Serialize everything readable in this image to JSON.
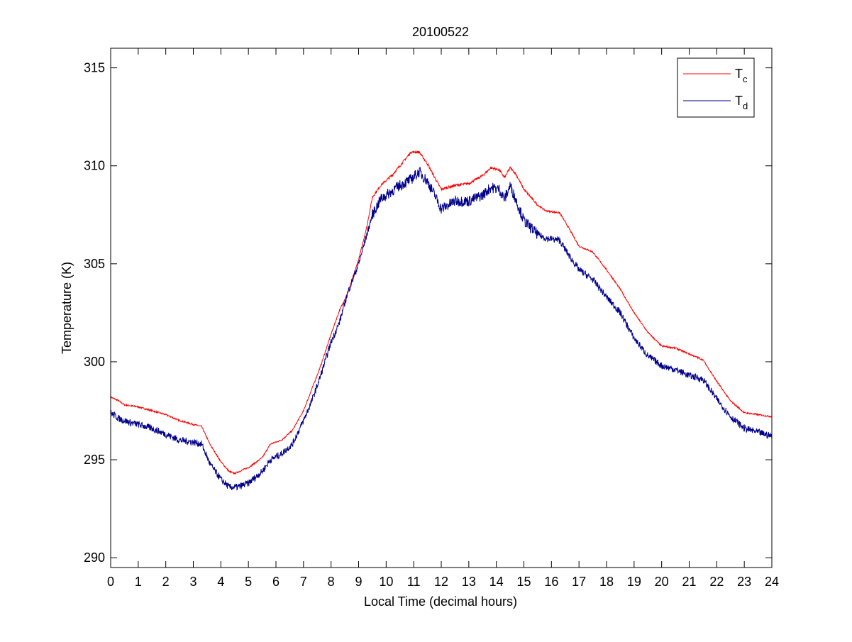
{
  "chart_data": {
    "type": "line",
    "title": "20100522",
    "xlabel": "Local Time (decimal hours)",
    "ylabel": "Temperature (K)",
    "xlim": [
      0,
      24
    ],
    "ylim": [
      289.5,
      316
    ],
    "xticks": [
      0,
      1,
      2,
      3,
      4,
      5,
      6,
      7,
      8,
      9,
      10,
      11,
      12,
      13,
      14,
      15,
      16,
      17,
      18,
      19,
      20,
      21,
      22,
      23,
      24
    ],
    "yticks": [
      290,
      295,
      300,
      305,
      310,
      315
    ],
    "grid": false,
    "legend_position": "top-right",
    "series": [
      {
        "name": "T",
        "name_subscript": "c",
        "color": "#ff0000",
        "points": [
          [
            0,
            298.2
          ],
          [
            0.3,
            298
          ],
          [
            0.5,
            297.8
          ],
          [
            1,
            297.7
          ],
          [
            1.5,
            297.5
          ],
          [
            2,
            297.3
          ],
          [
            2.5,
            297
          ],
          [
            3,
            296.8
          ],
          [
            3.3,
            296.7
          ],
          [
            3.6,
            295.8
          ],
          [
            4,
            294.9
          ],
          [
            4.3,
            294.4
          ],
          [
            4.5,
            294.3
          ],
          [
            5,
            294.6
          ],
          [
            5.5,
            295.1
          ],
          [
            5.8,
            295.8
          ],
          [
            6.2,
            296
          ],
          [
            6.6,
            296.5
          ],
          [
            7,
            297.5
          ],
          [
            7.3,
            298.6
          ],
          [
            7.6,
            299.7
          ],
          [
            8,
            301.4
          ],
          [
            8.3,
            302.6
          ],
          [
            8.6,
            303.5
          ],
          [
            9,
            305.2
          ],
          [
            9.3,
            306.9
          ],
          [
            9.5,
            308.4
          ],
          [
            9.8,
            309
          ],
          [
            10.2,
            309.5
          ],
          [
            10.5,
            310
          ],
          [
            10.9,
            310.7
          ],
          [
            11.2,
            310.7
          ],
          [
            11.5,
            310.1
          ],
          [
            11.8,
            309.3
          ],
          [
            12,
            308.8
          ],
          [
            12.5,
            309
          ],
          [
            13,
            309.1
          ],
          [
            13.5,
            309.5
          ],
          [
            13.8,
            309.9
          ],
          [
            14.1,
            309.8
          ],
          [
            14.3,
            309.4
          ],
          [
            14.5,
            309.9
          ],
          [
            14.7,
            309.6
          ],
          [
            15,
            308.8
          ],
          [
            15.5,
            308
          ],
          [
            15.8,
            307.7
          ],
          [
            16.3,
            307.6
          ],
          [
            16.6,
            306.9
          ],
          [
            17,
            305.9
          ],
          [
            17.5,
            305.6
          ],
          [
            18,
            304.7
          ],
          [
            18.5,
            303.7
          ],
          [
            19,
            302.5
          ],
          [
            19.5,
            301.5
          ],
          [
            20,
            300.8
          ],
          [
            20.5,
            300.7
          ],
          [
            21,
            300.4
          ],
          [
            21.5,
            300.1
          ],
          [
            22,
            299
          ],
          [
            22.5,
            298
          ],
          [
            23,
            297.4
          ],
          [
            23.5,
            297.3
          ],
          [
            24,
            297.2
          ]
        ]
      },
      {
        "name": "T",
        "name_subscript": "d",
        "color": "#00008b",
        "points": [
          [
            0,
            297.4
          ],
          [
            0.3,
            297.1
          ],
          [
            0.7,
            296.9
          ],
          [
            1,
            296.8
          ],
          [
            1.5,
            296.6
          ],
          [
            2,
            296.3
          ],
          [
            2.5,
            296
          ],
          [
            3,
            295.9
          ],
          [
            3.3,
            295.8
          ],
          [
            3.6,
            294.8
          ],
          [
            4,
            294
          ],
          [
            4.3,
            293.6
          ],
          [
            4.6,
            293.6
          ],
          [
            5,
            293.8
          ],
          [
            5.5,
            294.4
          ],
          [
            5.8,
            295
          ],
          [
            6.2,
            295.3
          ],
          [
            6.6,
            295.8
          ],
          [
            7,
            297
          ],
          [
            7.3,
            298
          ],
          [
            7.6,
            299.2
          ],
          [
            8,
            301
          ],
          [
            8.3,
            302
          ],
          [
            8.6,
            303.5
          ],
          [
            9,
            305
          ],
          [
            9.3,
            306.5
          ],
          [
            9.5,
            307.5
          ],
          [
            9.8,
            308.3
          ],
          [
            10.2,
            308.7
          ],
          [
            10.5,
            309
          ],
          [
            10.9,
            309.3
          ],
          [
            11.2,
            309.7
          ],
          [
            11.5,
            309.2
          ],
          [
            11.8,
            308.4
          ],
          [
            12,
            307.8
          ],
          [
            12.5,
            308.2
          ],
          [
            13,
            308.2
          ],
          [
            13.5,
            308.5
          ],
          [
            13.8,
            308.9
          ],
          [
            14.1,
            308.8
          ],
          [
            14.3,
            308.3
          ],
          [
            14.5,
            309
          ],
          [
            14.7,
            308.3
          ],
          [
            15,
            307.2
          ],
          [
            15.5,
            306.5
          ],
          [
            15.8,
            306.3
          ],
          [
            16.3,
            306.2
          ],
          [
            16.6,
            305.5
          ],
          [
            17,
            304.7
          ],
          [
            17.5,
            304.2
          ],
          [
            18,
            303.3
          ],
          [
            18.5,
            302.5
          ],
          [
            19,
            301.2
          ],
          [
            19.5,
            300.3
          ],
          [
            20,
            299.8
          ],
          [
            20.5,
            299.6
          ],
          [
            21,
            299.3
          ],
          [
            21.5,
            299.1
          ],
          [
            22,
            298.1
          ],
          [
            22.5,
            297.2
          ],
          [
            23,
            296.6
          ],
          [
            23.5,
            296.4
          ],
          [
            24,
            296.2
          ]
        ]
      }
    ]
  }
}
